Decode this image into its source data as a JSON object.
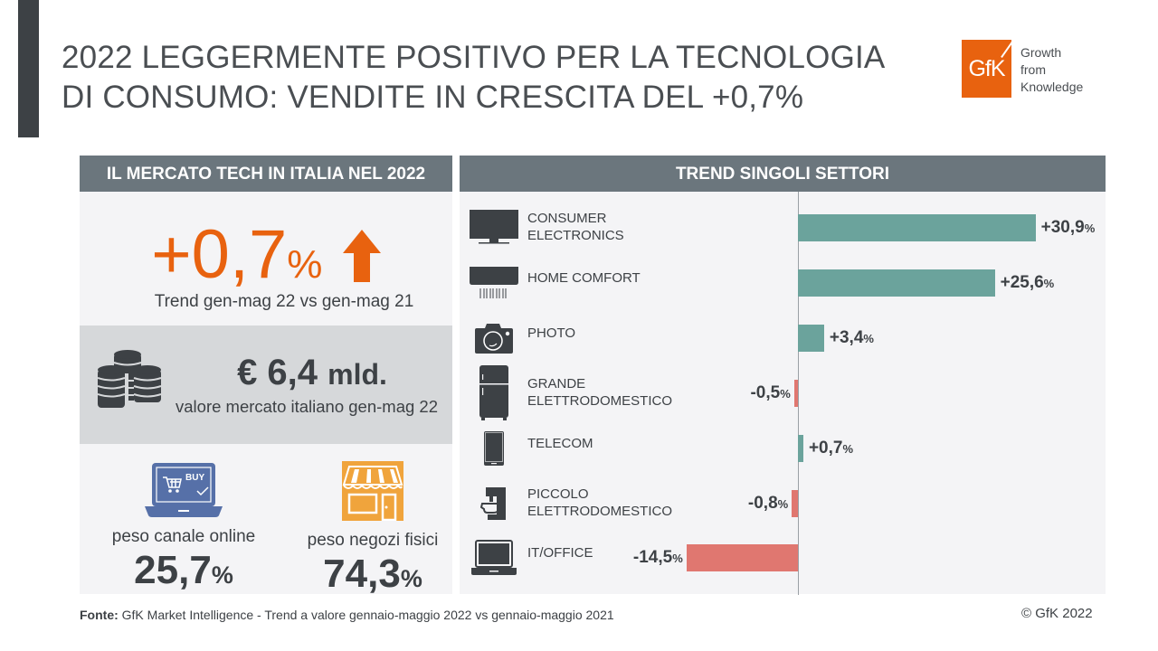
{
  "header": {
    "title_line1": "2022 LEGGERMENTE POSITIVO PER LA TECNOLOGIA",
    "title_line2": "DI CONSUMO: VENDITE IN CRESCITA DEL +0,7%",
    "logo_text": "GfK",
    "tagline": [
      "Growth",
      "from",
      "Knowledge"
    ],
    "brand_color": "#e8620f"
  },
  "left_panel": {
    "heading": "IL MERCATO TECH IN ITALIA NEL 2022",
    "trend_value": "+0,7",
    "trend_unit": "%",
    "trend_icon": "up-arrow-icon",
    "trend_caption": "Trend gen-mag 22 vs gen-mag 21",
    "market_value": "€ 6,4",
    "market_unit": "mld.",
    "market_caption": "valore mercato italiano gen-mag 22",
    "market_icon": "coins-icon",
    "online": {
      "icon": "laptop-buy-icon",
      "icon_text": "BUY",
      "label": "peso canale online",
      "value": "25,7",
      "unit": "%"
    },
    "stores": {
      "icon": "shop-icon",
      "label": "peso negozi fisici",
      "value": "74,3",
      "unit": "%"
    }
  },
  "chart_data": {
    "type": "bar",
    "orientation": "horizontal",
    "title": "TREND SINGOLI SETTORI",
    "xlabel": "",
    "ylabel": "",
    "unit": "%",
    "xlim": [
      -16,
      40
    ],
    "grid": false,
    "categories": [
      {
        "label_lines": [
          "CONSUMER",
          "ELECTRONICS"
        ],
        "icon": "tv-icon"
      },
      {
        "label_lines": [
          "HOME COMFORT"
        ],
        "icon": "air-conditioner-icon"
      },
      {
        "label_lines": [
          "PHOTO"
        ],
        "icon": "camera-icon"
      },
      {
        "label_lines": [
          "GRANDE",
          "ELETTRODOMESTICO"
        ],
        "icon": "fridge-icon"
      },
      {
        "label_lines": [
          "TELECOM"
        ],
        "icon": "smartphone-icon"
      },
      {
        "label_lines": [
          "PICCOLO",
          "ELETTRODOMESTICO"
        ],
        "icon": "coffee-machine-icon"
      },
      {
        "label_lines": [
          "IT/OFFICE"
        ],
        "icon": "laptop-icon"
      }
    ],
    "values": [
      30.9,
      25.6,
      3.4,
      -0.5,
      0.7,
      -0.8,
      -14.5
    ],
    "value_labels": [
      "+30,9",
      "+25,6",
      "+3,4",
      "-0,5",
      "+0,7",
      "-0,8",
      "-14,5"
    ],
    "positive_color": "#6ba39c",
    "negative_color": "#e07770"
  },
  "footer": {
    "source_label": "Fonte:",
    "source_text": " GfK Market Intelligence  - Trend a valore gennaio-maggio 2022 vs gennaio-maggio 2021",
    "copyright": "© GfK 2022"
  }
}
